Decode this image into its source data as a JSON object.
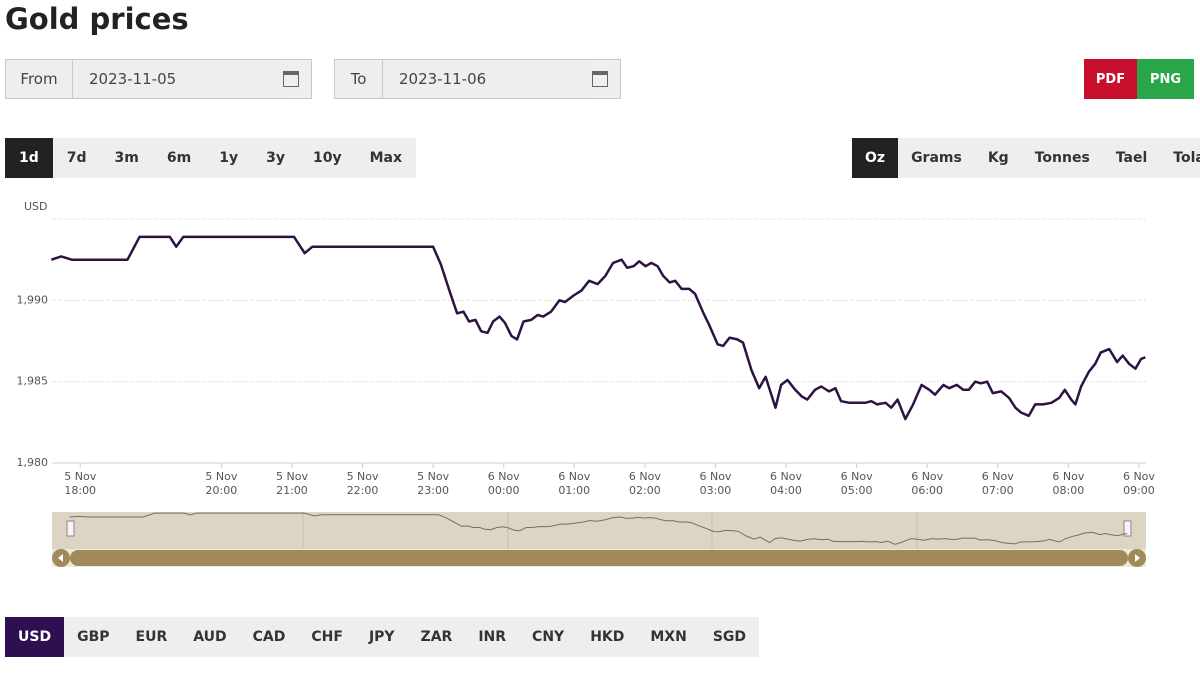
{
  "title": "Gold prices",
  "date_range": {
    "from_label": "From",
    "from": "2023-11-05",
    "to_label": "To",
    "to": "2023-11-06"
  },
  "export_buttons": [
    "PDF",
    "PNG"
  ],
  "ranges": [
    "1d",
    "7d",
    "3m",
    "6m",
    "1y",
    "3y",
    "10y",
    "Max"
  ],
  "units": [
    "Oz",
    "Grams",
    "Kg",
    "Tonnes",
    "Tael",
    "Tola"
  ],
  "currencies": [
    "USD",
    "GBP",
    "EUR",
    "AUD",
    "CAD",
    "CHF",
    "JPY",
    "ZAR",
    "INR",
    "CNY",
    "HKD",
    "MXN",
    "SGD"
  ],
  "chart_data": {
    "type": "line",
    "y_label": "USD",
    "color": "#2d1342",
    "x": [
      17.59,
      17.73,
      17.88,
      18.67,
      18.84,
      19.27,
      19.36,
      19.46,
      21.03,
      21.18,
      21.29,
      23.0,
      23.11,
      23.23,
      23.34,
      23.43,
      23.51,
      23.6,
      23.68,
      23.77,
      23.85,
      23.94,
      24.02,
      24.11,
      24.19,
      24.28,
      24.39,
      24.48,
      24.56,
      24.67,
      24.79,
      24.87,
      24.99,
      25.1,
      25.21,
      25.33,
      25.44,
      25.55,
      25.67,
      25.75,
      25.84,
      25.92,
      26.01,
      26.09,
      26.18,
      26.26,
      26.35,
      26.43,
      26.52,
      26.63,
      26.71,
      26.83,
      26.91,
      27.03,
      27.11,
      27.2,
      27.31,
      27.39,
      27.51,
      27.62,
      27.71,
      27.85,
      27.93,
      28.02,
      28.13,
      28.22,
      28.3,
      28.41,
      28.5,
      28.61,
      28.7,
      28.78,
      28.9,
      29.01,
      29.12,
      29.21,
      29.29,
      29.41,
      29.49,
      29.58,
      29.69,
      29.8,
      29.92,
      30.03,
      30.11,
      30.23,
      30.31,
      30.42,
      30.51,
      30.59,
      30.68,
      30.76,
      30.85,
      30.93,
      31.05,
      31.16,
      31.25,
      31.33,
      31.44,
      31.53,
      31.64,
      31.76,
      31.87,
      31.95,
      32.04,
      32.1,
      32.18,
      32.29,
      32.38,
      32.46,
      32.58,
      32.69,
      32.77,
      32.86,
      32.95,
      33.03,
      33.09
    ],
    "values": [
      1992.5,
      1992.7,
      1992.5,
      1992.5,
      1993.9,
      1993.9,
      1993.3,
      1993.9,
      1993.9,
      1992.9,
      1993.3,
      1993.3,
      1992.2,
      1990.6,
      1989.2,
      1989.3,
      1988.7,
      1988.8,
      1988.1,
      1988.0,
      1988.7,
      1989.0,
      1988.6,
      1987.8,
      1987.6,
      1988.7,
      1988.8,
      1989.1,
      1989.0,
      1989.3,
      1990.0,
      1989.9,
      1990.3,
      1990.6,
      1991.2,
      1991.0,
      1991.5,
      1992.3,
      1992.5,
      1992.0,
      1992.1,
      1992.4,
      1992.1,
      1992.3,
      1992.1,
      1991.5,
      1991.1,
      1991.2,
      1990.7,
      1990.7,
      1990.4,
      1989.2,
      1988.5,
      1987.3,
      1987.2,
      1987.7,
      1987.6,
      1987.4,
      1985.7,
      1984.6,
      1985.3,
      1983.4,
      1984.8,
      1985.1,
      1984.5,
      1984.1,
      1983.9,
      1984.5,
      1984.7,
      1984.4,
      1984.6,
      1983.8,
      1983.7,
      1983.7,
      1983.7,
      1983.8,
      1983.6,
      1983.7,
      1983.4,
      1983.9,
      1982.7,
      1983.6,
      1984.8,
      1984.5,
      1984.2,
      1984.8,
      1984.6,
      1984.8,
      1984.5,
      1984.5,
      1985.0,
      1984.9,
      1985.0,
      1984.3,
      1984.4,
      1984.0,
      1983.4,
      1983.1,
      1982.9,
      1983.6,
      1983.6,
      1983.7,
      1984.0,
      1984.5,
      1983.9,
      1983.6,
      1984.7,
      1985.6,
      1986.1,
      1986.8,
      1987.0,
      1986.2,
      1986.6,
      1986.1,
      1985.8,
      1986.4,
      1986.5
    ],
    "xlim": [
      17.6,
      33.1
    ],
    "xticks": [
      {
        "value": 18,
        "label": "5 Nov 18:00"
      },
      {
        "value": 20,
        "label": "5 Nov 20:00"
      },
      {
        "value": 21,
        "label": "5 Nov 21:00"
      },
      {
        "value": 22,
        "label": "5 Nov 22:00"
      },
      {
        "value": 23,
        "label": "5 Nov 23:00"
      },
      {
        "value": 24,
        "label": "6 Nov 00:00"
      },
      {
        "value": 25,
        "label": "6 Nov 01:00"
      },
      {
        "value": 26,
        "label": "6 Nov 02:00"
      },
      {
        "value": 27,
        "label": "6 Nov 03:00"
      },
      {
        "value": 28,
        "label": "6 Nov 04:00"
      },
      {
        "value": 29,
        "label": "6 Nov 05:00"
      },
      {
        "value": 30,
        "label": "6 Nov 06:00"
      },
      {
        "value": 31,
        "label": "6 Nov 07:00"
      },
      {
        "value": 32,
        "label": "6 Nov 08:00"
      },
      {
        "value": 33,
        "label": "6 Nov 09:00"
      }
    ],
    "ylim": [
      1980,
      1995
    ],
    "yticks": [
      {
        "value": 1980,
        "label": "1,980"
      },
      {
        "value": 1985,
        "label": "1,985"
      },
      {
        "value": 1990,
        "label": "1,990"
      }
    ],
    "grid": true
  }
}
